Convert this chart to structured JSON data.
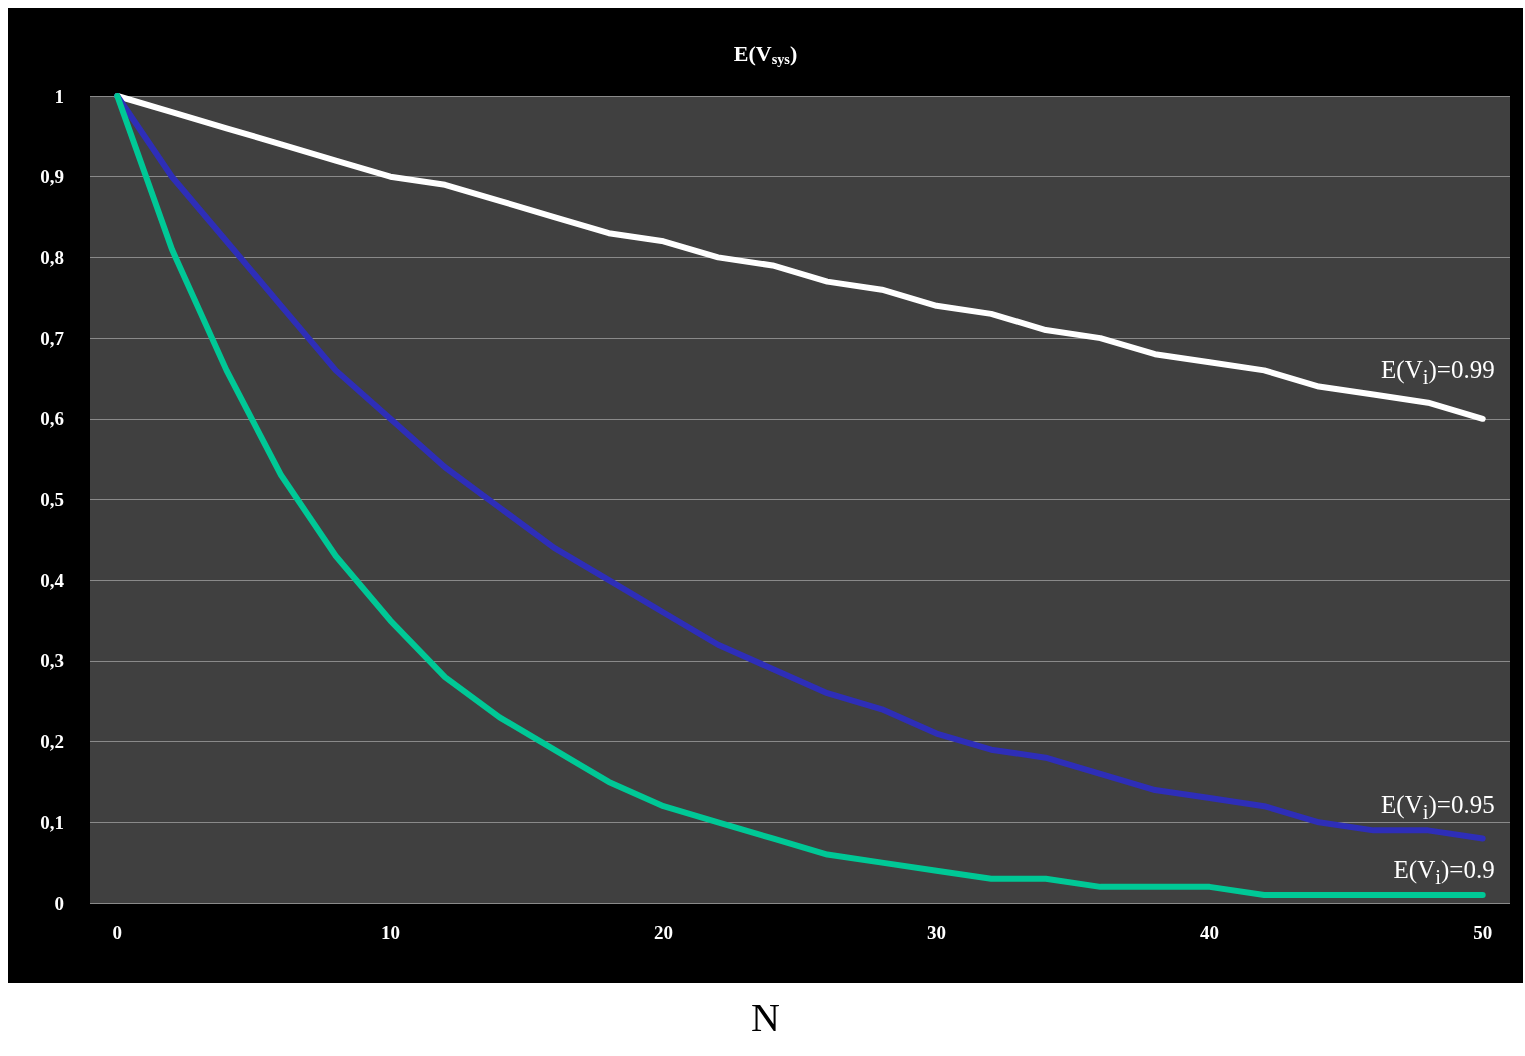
{
  "chart_data": {
    "type": "line",
    "title": "E(V$_{sys}$)",
    "xlabel": "N",
    "x": [
      0,
      2,
      4,
      6,
      8,
      10,
      12,
      14,
      16,
      18,
      20,
      22,
      24,
      26,
      28,
      30,
      32,
      34,
      36,
      38,
      40,
      42,
      44,
      46,
      48,
      50
    ],
    "series": [
      {
        "name": "E(V$_{i}$)=0.99",
        "color": "#ffffff",
        "values": [
          1,
          0.98,
          0.96,
          0.94,
          0.92,
          0.9,
          0.89,
          0.87,
          0.85,
          0.83,
          0.82,
          0.8,
          0.79,
          0.77,
          0.76,
          0.74,
          0.73,
          0.71,
          0.7,
          0.68,
          0.67,
          0.66,
          0.64,
          0.63,
          0.62,
          0.6
        ]
      },
      {
        "name": "E(V$_{i}$)=0.95",
        "color": "#2e2eb8",
        "values": [
          1,
          0.9,
          0.82,
          0.74,
          0.66,
          0.6,
          0.54,
          0.49,
          0.44,
          0.4,
          0.36,
          0.32,
          0.29,
          0.26,
          0.24,
          0.21,
          0.19,
          0.18,
          0.16,
          0.14,
          0.13,
          0.12,
          0.1,
          0.09,
          0.09,
          0.08
        ]
      },
      {
        "name": "E(V$_{i}$)=0.9",
        "color": "#00c896",
        "values": [
          1,
          0.81,
          0.66,
          0.53,
          0.43,
          0.35,
          0.28,
          0.23,
          0.19,
          0.15,
          0.12,
          0.1,
          0.08,
          0.06,
          0.05,
          0.04,
          0.03,
          0.03,
          0.02,
          0.02,
          0.02,
          0.01,
          0.01,
          0.01,
          0.01,
          0.01
        ]
      }
    ],
    "xlim": [
      -1,
      51
    ],
    "xticks": [
      0,
      10,
      20,
      30,
      40,
      50
    ],
    "ylim": [
      0,
      1
    ],
    "yticks": [
      0,
      {
        "value": 0.1,
        "label": "0,1"
      },
      {
        "value": 0.2,
        "label": "0,2"
      },
      {
        "value": 0.3,
        "label": "0,3"
      },
      {
        "value": 0.4,
        "label": "0,4"
      },
      {
        "value": 0.5,
        "label": "0,5"
      },
      {
        "value": 0.6,
        "label": "0,6"
      },
      {
        "value": 0.7,
        "label": "0,7"
      },
      {
        "value": 0.8,
        "label": "0,8"
      },
      {
        "value": 0.9,
        "label": "0,9"
      },
      1
    ],
    "grid": "y",
    "marker": "none",
    "line_style": "solid"
  }
}
